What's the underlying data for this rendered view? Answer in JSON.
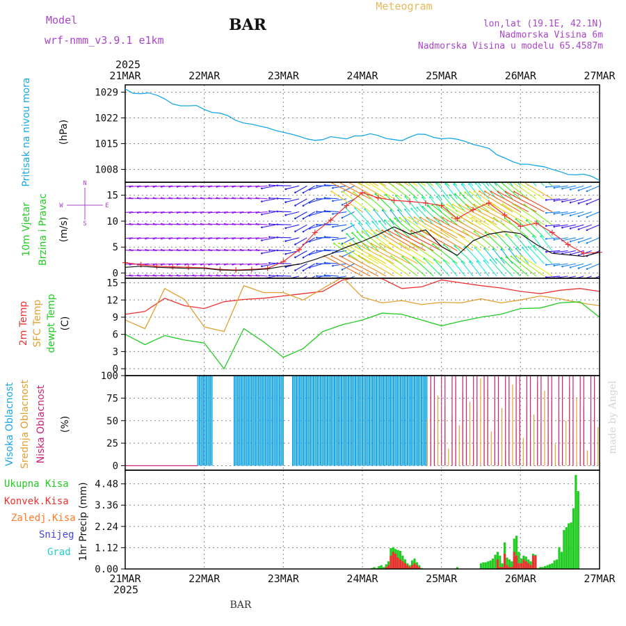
{
  "header": {
    "model_label": "Model",
    "model_name": "wrf-nmm_v3.9.1  e1km",
    "station": "BAR",
    "title": "Meteogram",
    "coords": "lon,lat (19.1E, 42.1N)",
    "elevation": "Nadmorska Visina 6m",
    "model_elevation": "Nadmorska Visina u modelu 65.4587m",
    "footer_station": "BAR",
    "watermark": "made by Angel"
  },
  "colors": {
    "pressure": "#1aa7e6",
    "temp2m": "#ee3030",
    "sfc_temp": "#e3a030",
    "dewpt": "#22cc22",
    "cloud_high": "#1aa7e6",
    "cloud_mid": "#e3a030",
    "cloud_low": "#cc2277",
    "precip_total": "#22cc22",
    "precip_conv": "#ee3030",
    "wind_speed": "#111111",
    "wind_gust": "#ee3030",
    "compass": "#aa44cc"
  },
  "chart_data": [
    {
      "type": "line",
      "panel": "pressure",
      "years": [
        "2025",
        "2025"
      ],
      "xticks": [
        "21MAR",
        "22MAR",
        "23MAR",
        "24MAR",
        "25MAR",
        "26MAR",
        "27MAR"
      ],
      "ylabel_left": "Pritisak na nivou mora",
      "ylabel_unit": "(hPa)",
      "yticks": [
        1029,
        1022,
        1015,
        1008
      ],
      "ylim": [
        1004.5,
        1031
      ],
      "x": [
        0,
        0.1,
        0.2,
        0.3,
        0.4,
        0.5,
        0.6,
        0.7,
        0.8,
        0.9,
        1.0,
        1.1,
        1.2,
        1.3,
        1.4,
        1.5,
        1.6,
        1.7,
        1.8,
        1.9,
        2.0,
        2.1,
        2.2,
        2.3,
        2.4,
        2.5,
        2.6,
        2.7,
        2.8,
        2.9,
        3.0,
        3.1,
        3.2,
        3.3,
        3.4,
        3.5,
        3.6,
        3.7,
        3.8,
        3.9,
        4.0,
        4.1,
        4.2,
        4.3,
        4.4,
        4.5,
        4.6,
        4.7,
        4.8,
        4.9,
        5.0,
        5.1,
        5.2,
        5.3,
        5.4,
        5.5,
        5.6,
        5.7,
        5.8,
        5.9,
        6.0
      ],
      "series": [
        {
          "values": [
            1029.9,
            1028.7,
            1028.6,
            1028.8,
            1028.2,
            1027.2,
            1025.8,
            1025.3,
            1025.3,
            1025.4,
            1024.3,
            1023.5,
            1023.3,
            1022.6,
            1021.3,
            1020.6,
            1020.3,
            1019.8,
            1019.3,
            1018.6,
            1018.1,
            1017.6,
            1017.0,
            1016.3,
            1015.9,
            1016.1,
            1016.9,
            1016.6,
            1016.3,
            1017.1,
            1017.1,
            1017.7,
            1017.2,
            1016.4,
            1016.1,
            1015.8,
            1016.8,
            1017.6,
            1017.5,
            1016.7,
            1016.3,
            1016.5,
            1016.2,
            1015.6,
            1014.8,
            1014.3,
            1013.7,
            1012.0,
            1011.1,
            1010.1,
            1009.4,
            1009.4,
            1009.0,
            1008.7,
            1008.0,
            1007.4,
            1006.6,
            1006.5,
            1006.7,
            1006.1,
            1005.0
          ]
        }
      ]
    },
    {
      "type": "line",
      "panel": "wind",
      "ylabel_left": [
        "10m Vjetar",
        "Brzina i Pravac"
      ],
      "ylabel_unit": "(m/s)",
      "yticks": [
        0,
        5,
        10,
        15
      ],
      "ylim": [
        -1,
        17.5
      ],
      "compass": {
        "n": "N",
        "w": "W",
        "e": "E",
        "s": "S"
      },
      "x": [
        0,
        0.2,
        0.4,
        0.6,
        0.8,
        1.0,
        1.2,
        1.4,
        1.6,
        1.8,
        2.0,
        2.2,
        2.4,
        2.6,
        2.8,
        3.0,
        3.2,
        3.4,
        3.6,
        3.8,
        4.0,
        4.2,
        4.4,
        4.6,
        4.8,
        5.0,
        5.2,
        5.4,
        5.6,
        5.8,
        6.0
      ],
      "series": [
        {
          "name_hidden": "speed",
          "values": [
            1.1,
            1.3,
            1.1,
            1.0,
            0.9,
            0.9,
            0.6,
            0.5,
            0.6,
            0.8,
            1.3,
            1.7,
            2.6,
            3.7,
            5.0,
            6.1,
            7.4,
            8.9,
            7.5,
            8.3,
            5.1,
            3.4,
            6.2,
            7.5,
            8.0,
            7.6,
            5.5,
            3.8,
            3.5,
            3.2,
            4.0
          ]
        },
        {
          "name_hidden": "gust",
          "values": [
            2.0,
            1.6,
            1.3,
            1.2,
            1.1,
            1.0,
            0.7,
            0.6,
            0.7,
            0.9,
            2.2,
            4.5,
            7.8,
            10.2,
            13.0,
            15.5,
            14.5,
            14.0,
            13.8,
            13.5,
            13.0,
            10.5,
            12.2,
            13.5,
            11.2,
            9.0,
            9.6,
            7.8,
            5.5,
            3.8,
            4.0
          ]
        }
      ]
    },
    {
      "type": "line",
      "panel": "temperature",
      "ylabel_left": [
        "2m Temp",
        "SFC Temp",
        "dewpt Temp"
      ],
      "ylabel_unit": "(C)",
      "yticks": [
        0,
        3,
        6,
        9,
        12,
        15
      ],
      "ylim": [
        -1.2,
        15.8
      ],
      "x": [
        0,
        0.25,
        0.5,
        0.75,
        1.0,
        1.25,
        1.5,
        1.75,
        2.0,
        2.25,
        2.5,
        2.75,
        3.0,
        3.25,
        3.5,
        3.75,
        4.0,
        4.25,
        4.5,
        4.75,
        5.0,
        5.25,
        5.5,
        5.75,
        6.0
      ],
      "series": [
        {
          "name_hidden": "2m",
          "values": [
            9.5,
            10.0,
            12.3,
            11.0,
            10.5,
            11.7,
            12.1,
            12.3,
            12.7,
            13.1,
            13.5,
            15.5,
            16.1,
            15.7,
            14.0,
            14.3,
            15.5,
            15.0,
            14.5,
            14.1,
            13.5,
            13.1,
            13.7,
            14.0,
            13.5
          ]
        },
        {
          "name_hidden": "sfc",
          "values": [
            8.5,
            7.0,
            14.0,
            12.1,
            7.3,
            6.5,
            14.5,
            13.3,
            13.3,
            12.0,
            14.0,
            16.0,
            12.5,
            11.5,
            11.9,
            11.2,
            11.6,
            11.5,
            12.2,
            11.5,
            12.0,
            12.7,
            12.2,
            11.5,
            11.0
          ]
        },
        {
          "name_hidden": "dewpt",
          "values": [
            6.0,
            4.2,
            5.8,
            5.0,
            4.5,
            0.0,
            7.0,
            4.7,
            2.0,
            3.5,
            6.5,
            7.7,
            8.5,
            9.7,
            9.5,
            8.5,
            7.5,
            8.3,
            9.0,
            9.5,
            10.5,
            10.6,
            11.5,
            11.7,
            9.0
          ]
        }
      ]
    },
    {
      "type": "bar",
      "panel": "clouds",
      "ylabel_left": [
        "Visoka Oblacnost",
        "Srednja Oblacnost",
        "Niska Oblacnost"
      ],
      "ylabel_unit": "(%)",
      "yticks": [
        0,
        25,
        50,
        75,
        100
      ],
      "ylim": [
        -5,
        100
      ],
      "segments": [
        {
          "name_hidden": "high",
          "from": 0.92,
          "to": 1.1,
          "value": 100
        },
        {
          "name_hidden": "high",
          "from": 1.38,
          "to": 2.0,
          "value": 100
        },
        {
          "name_hidden": "high",
          "from": 2.12,
          "to": 3.82,
          "value": 100
        },
        {
          "name_hidden": "mid",
          "from": 3.82,
          "to": 6.0,
          "value": 60
        },
        {
          "name_hidden": "low",
          "from": 3.82,
          "to": 6.0,
          "value": 100
        }
      ]
    },
    {
      "type": "bar",
      "panel": "precip",
      "ylabel_left": [
        "Ukupna Kisa",
        "Konvek.Kisa",
        "Zaledj.Kisa",
        "Snijeg",
        "Grad"
      ],
      "ylabel_unit": "1hr Precip (mm)",
      "yticks": [
        0,
        1.12,
        2.24,
        3.36,
        4.48
      ],
      "ylim": [
        0,
        5.2
      ],
      "x": [
        3.12,
        3.15,
        3.18,
        3.21,
        3.24,
        3.27,
        3.3,
        3.33,
        3.36,
        3.39,
        3.42,
        3.45,
        3.48,
        3.51,
        3.54,
        3.57,
        3.6,
        3.63,
        3.66,
        3.69,
        3.72,
        3.75,
        4.2,
        4.5,
        4.53,
        4.56,
        4.59,
        4.62,
        4.65,
        4.68,
        4.71,
        4.74,
        4.77,
        4.8,
        4.83,
        4.86,
        4.89,
        4.92,
        4.95,
        4.98,
        5.01,
        5.04,
        5.07,
        5.1,
        5.13,
        5.16,
        5.19,
        5.22,
        5.25,
        5.28,
        5.31,
        5.34,
        5.37,
        5.4,
        5.43,
        5.46,
        5.49,
        5.52,
        5.55,
        5.58,
        5.61,
        5.64,
        5.67,
        5.7,
        5.73,
        5.76,
        5.79,
        5.82,
        5.85,
        5.88,
        5.91,
        5.94,
        5.97
      ],
      "series": [
        {
          "name_hidden": "total",
          "values": [
            0.05,
            0.1,
            0.05,
            0.15,
            0.2,
            0.1,
            0.25,
            0.4,
            1.1,
            1.15,
            1.05,
            1.0,
            0.95,
            0.7,
            0.5,
            0.3,
            0.2,
            0.45,
            0.55,
            0.35,
            0.2,
            0.05,
            0.1,
            0.3,
            0.35,
            0.35,
            0.4,
            0.45,
            0.55,
            0.75,
            0.9,
            0.7,
            0.3,
            1.4,
            0.6,
            0.5,
            0.4,
            1.6,
            1.75,
            0.9,
            0.55,
            0.7,
            0.65,
            0.5,
            0.4,
            0.8,
            0.75,
            0.05,
            0.1,
            0.1,
            0.15,
            0.2,
            0.25,
            0.3,
            0.45,
            0.5,
            1.15,
            0.9,
            2.05,
            2.2,
            2.4,
            2.45,
            3.2,
            4.95,
            4.1,
            0.0,
            0.0,
            0.0,
            0.0,
            0.0,
            0.0,
            0.0,
            0.0
          ]
        },
        {
          "name_hidden": "conv",
          "values": [
            0,
            0,
            0,
            0,
            0,
            0,
            0.1,
            0.2,
            0.7,
            0.9,
            0.8,
            0.6,
            0.5,
            0.4,
            0.3,
            0.2,
            0.1,
            0.2,
            0.3,
            0.2,
            0.1,
            0,
            0,
            0,
            0,
            0,
            0,
            0,
            0,
            0,
            0.5,
            0.1,
            0.1,
            0.8,
            0.2,
            0.1,
            0.1,
            0.9,
            0.7,
            0.3,
            0.3,
            0.5,
            0.4,
            0.3,
            0.2,
            0.7,
            0.7,
            0,
            0,
            0,
            0,
            0,
            0,
            0,
            0,
            0,
            0,
            0,
            0,
            0,
            0,
            0,
            0,
            0,
            0,
            0,
            0,
            0,
            0,
            0,
            0,
            0,
            0
          ]
        }
      ]
    }
  ]
}
